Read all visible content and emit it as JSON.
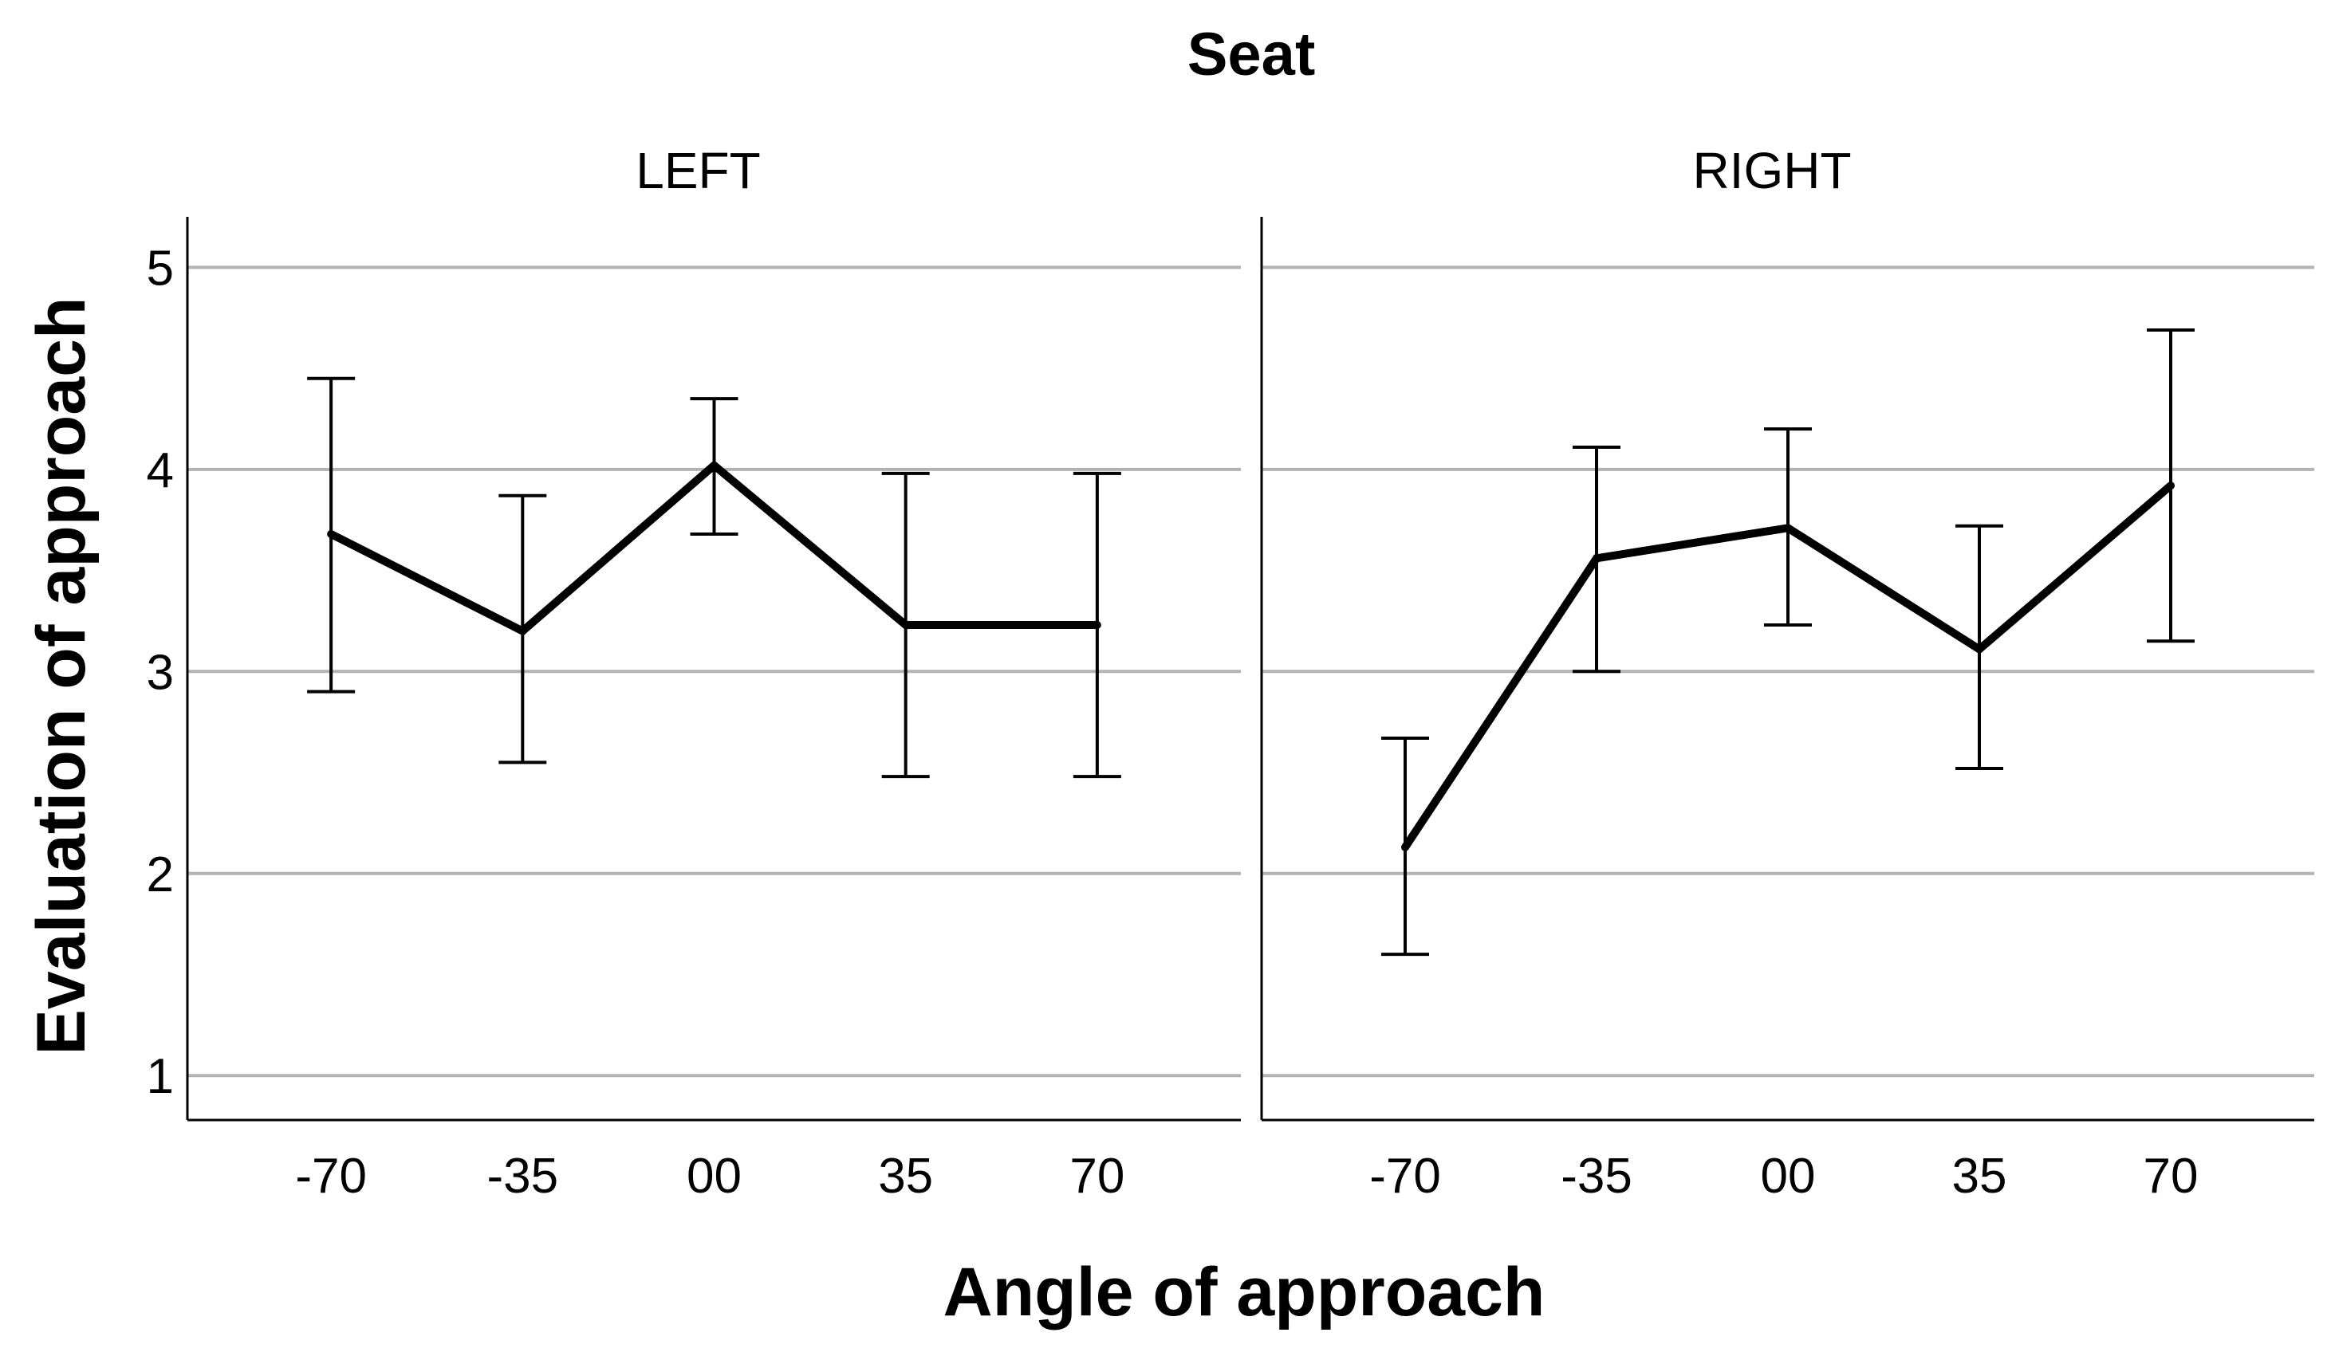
{
  "chart_data": {
    "type": "line",
    "title": "Seat",
    "xlabel": "Angle of approach",
    "ylabel": "Evaluation of approach",
    "categories": [
      "-70",
      "-35",
      "00",
      "35",
      "70"
    ],
    "ylim": [
      0.78,
      5.25
    ],
    "yticks": [
      "1",
      "2",
      "3",
      "4",
      "5"
    ],
    "grid": true,
    "legend": "none",
    "line_color": "#000000",
    "grid_color": "#b3b3b3",
    "panels": [
      {
        "name": "LEFT",
        "values": [
          3.68,
          3.2,
          4.02,
          3.23,
          3.23
        ],
        "error_low": [
          2.9,
          2.55,
          3.68,
          2.48,
          2.48
        ],
        "error_high": [
          4.45,
          3.87,
          4.35,
          3.98,
          3.98
        ]
      },
      {
        "name": "RIGHT",
        "values": [
          2.13,
          3.56,
          3.71,
          3.11,
          3.92
        ],
        "error_low": [
          1.6,
          3.0,
          3.23,
          2.52,
          3.15
        ],
        "error_high": [
          2.67,
          4.11,
          4.2,
          3.72,
          4.69
        ]
      }
    ]
  }
}
